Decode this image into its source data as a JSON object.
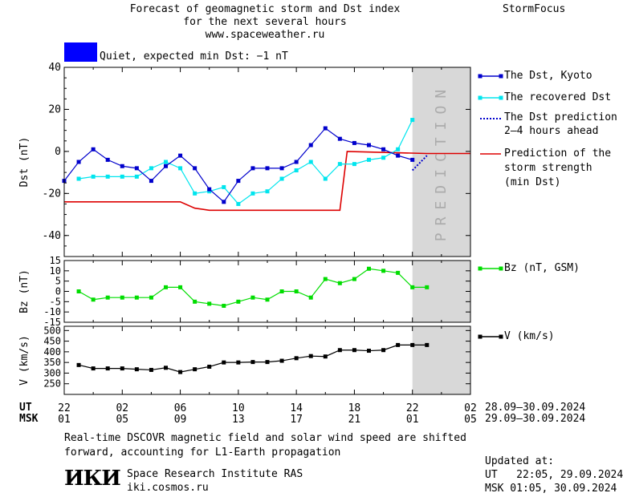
{
  "header": {
    "title_line1": "Forecast of geomagnetic storm and Dst index",
    "title_line2": "for the next several hours",
    "title_line3": "www.spaceweather.ru",
    "brand": "StormFocus",
    "status_color": "#0000ff",
    "status_text": "Quiet, expected min Dst: −1 nT"
  },
  "prediction_label": "PREDICTION",
  "legend": {
    "dst_kyoto": "The Dst, Kyoto",
    "dst_recovered": "The recovered Dst",
    "dst_prediction_1": "The Dst prediction",
    "dst_prediction_2": "2–4 hours ahead",
    "storm_1": "Prediction of the",
    "storm_2": "storm strength",
    "storm_3": "(min Dst)",
    "bz": "Bz (nT, GSM)",
    "v": "V (km/s)"
  },
  "x_axis": {
    "ut_label": "UT",
    "msk_label": "MSK",
    "ut_ticks": [
      "22",
      "02",
      "06",
      "10",
      "14",
      "18",
      "22",
      "02"
    ],
    "msk_ticks": [
      "01",
      "05",
      "09",
      "13",
      "17",
      "21",
      "01",
      "05"
    ],
    "ut_range": "28.09–30.09.2024",
    "msk_range": "29.09–30.09.2024"
  },
  "footer": {
    "note_line1": "Real-time DSCOVR magnetic field and solar wind speed are shifted",
    "note_line2": "forward, accounting for L1-Earth propagation",
    "logo_text": "ИКИ",
    "institute": "Space Research Institute RAS",
    "website": "iki.cosmos.ru",
    "updated_label": "Updated at:",
    "updated_ut": "UT   22:05, 29.09.2024",
    "updated_msk": "MSK 01:05, 30.09.2024"
  },
  "chart_data": [
    {
      "type": "line",
      "ylabel": "Dst (nT)",
      "ylim": [
        -50,
        40
      ],
      "yticks": [
        40,
        20,
        0,
        -20,
        -40
      ],
      "xlim": [
        0,
        28
      ],
      "prediction_region": [
        24,
        28
      ],
      "series": [
        {
          "name": "The Dst, Kyoto",
          "color": "#0000cc",
          "marker": "square",
          "x": [
            0,
            1,
            2,
            3,
            4,
            5,
            6,
            7,
            8,
            9,
            10,
            11,
            12,
            13,
            14,
            15,
            16,
            17,
            18,
            19,
            20,
            21,
            22,
            23,
            24
          ],
          "y": [
            -14,
            -5,
            1,
            -4,
            -7,
            -8,
            -14,
            -7,
            -2,
            -8,
            -18,
            -24,
            -14,
            -8,
            -8,
            -8,
            -5,
            3,
            11,
            6,
            4,
            3,
            1,
            -2,
            -4
          ]
        },
        {
          "name": "The recovered Dst",
          "color": "#00e5ee",
          "marker": "square",
          "x": [
            1,
            2,
            3,
            4,
            5,
            6,
            7,
            8,
            9,
            10,
            11,
            12,
            13,
            14,
            15,
            16,
            17,
            18,
            19,
            20,
            21,
            22,
            23,
            24
          ],
          "y": [
            -13,
            -12,
            -12,
            -12,
            -12,
            -8,
            -5,
            -8,
            -20,
            -19,
            -17,
            -25,
            -20,
            -19,
            -13,
            -9,
            -5,
            -13,
            -6,
            -6,
            -4,
            -3,
            1,
            15
          ]
        },
        {
          "name": "The Dst prediction 2–4 hours ahead",
          "color": "#0000cc",
          "style": "dotted",
          "x": [
            24,
            25
          ],
          "y": [
            -9,
            -2
          ]
        },
        {
          "name": "Prediction of the storm strength (min Dst)",
          "color": "#dd0000",
          "style": "step",
          "x": [
            0,
            8,
            9,
            10,
            19,
            19.5,
            25,
            28
          ],
          "y": [
            -24,
            -24,
            -27,
            -28,
            -28,
            0,
            -1,
            -1
          ]
        }
      ]
    },
    {
      "type": "line",
      "ylabel": "Bz (nT)",
      "ylim": [
        -15,
        15
      ],
      "yticks": [
        15,
        10,
        5,
        0,
        -5,
        -10,
        -15
      ],
      "series": [
        {
          "name": "Bz (nT, GSM)",
          "color": "#00dd00",
          "marker": "square",
          "x": [
            1,
            2,
            3,
            4,
            5,
            6,
            7,
            8,
            9,
            10,
            11,
            12,
            13,
            14,
            15,
            16,
            17,
            18,
            19,
            20,
            21,
            22,
            23,
            24,
            25
          ],
          "y": [
            0,
            -4,
            -3,
            -3,
            -3,
            -3,
            2,
            2,
            -5,
            -6,
            -7,
            -5,
            -3,
            -4,
            0,
            0,
            -3,
            6,
            4,
            6,
            11,
            10,
            9,
            2,
            2
          ]
        }
      ]
    },
    {
      "type": "line",
      "ylabel": "V (km/s)",
      "ylim": [
        200,
        520
      ],
      "yticks": [
        500,
        450,
        400,
        350,
        300,
        250
      ],
      "series": [
        {
          "name": "V (km/s)",
          "color": "#000000",
          "marker": "square",
          "x": [
            1,
            2,
            3,
            4,
            5,
            6,
            7,
            8,
            9,
            10,
            11,
            12,
            13,
            14,
            15,
            16,
            17,
            18,
            19,
            20,
            21,
            22,
            23,
            24,
            25
          ],
          "y": [
            338,
            322,
            322,
            322,
            318,
            315,
            325,
            305,
            318,
            330,
            350,
            350,
            352,
            352,
            358,
            370,
            380,
            378,
            408,
            408,
            405,
            408,
            432,
            432,
            432
          ]
        }
      ]
    }
  ]
}
